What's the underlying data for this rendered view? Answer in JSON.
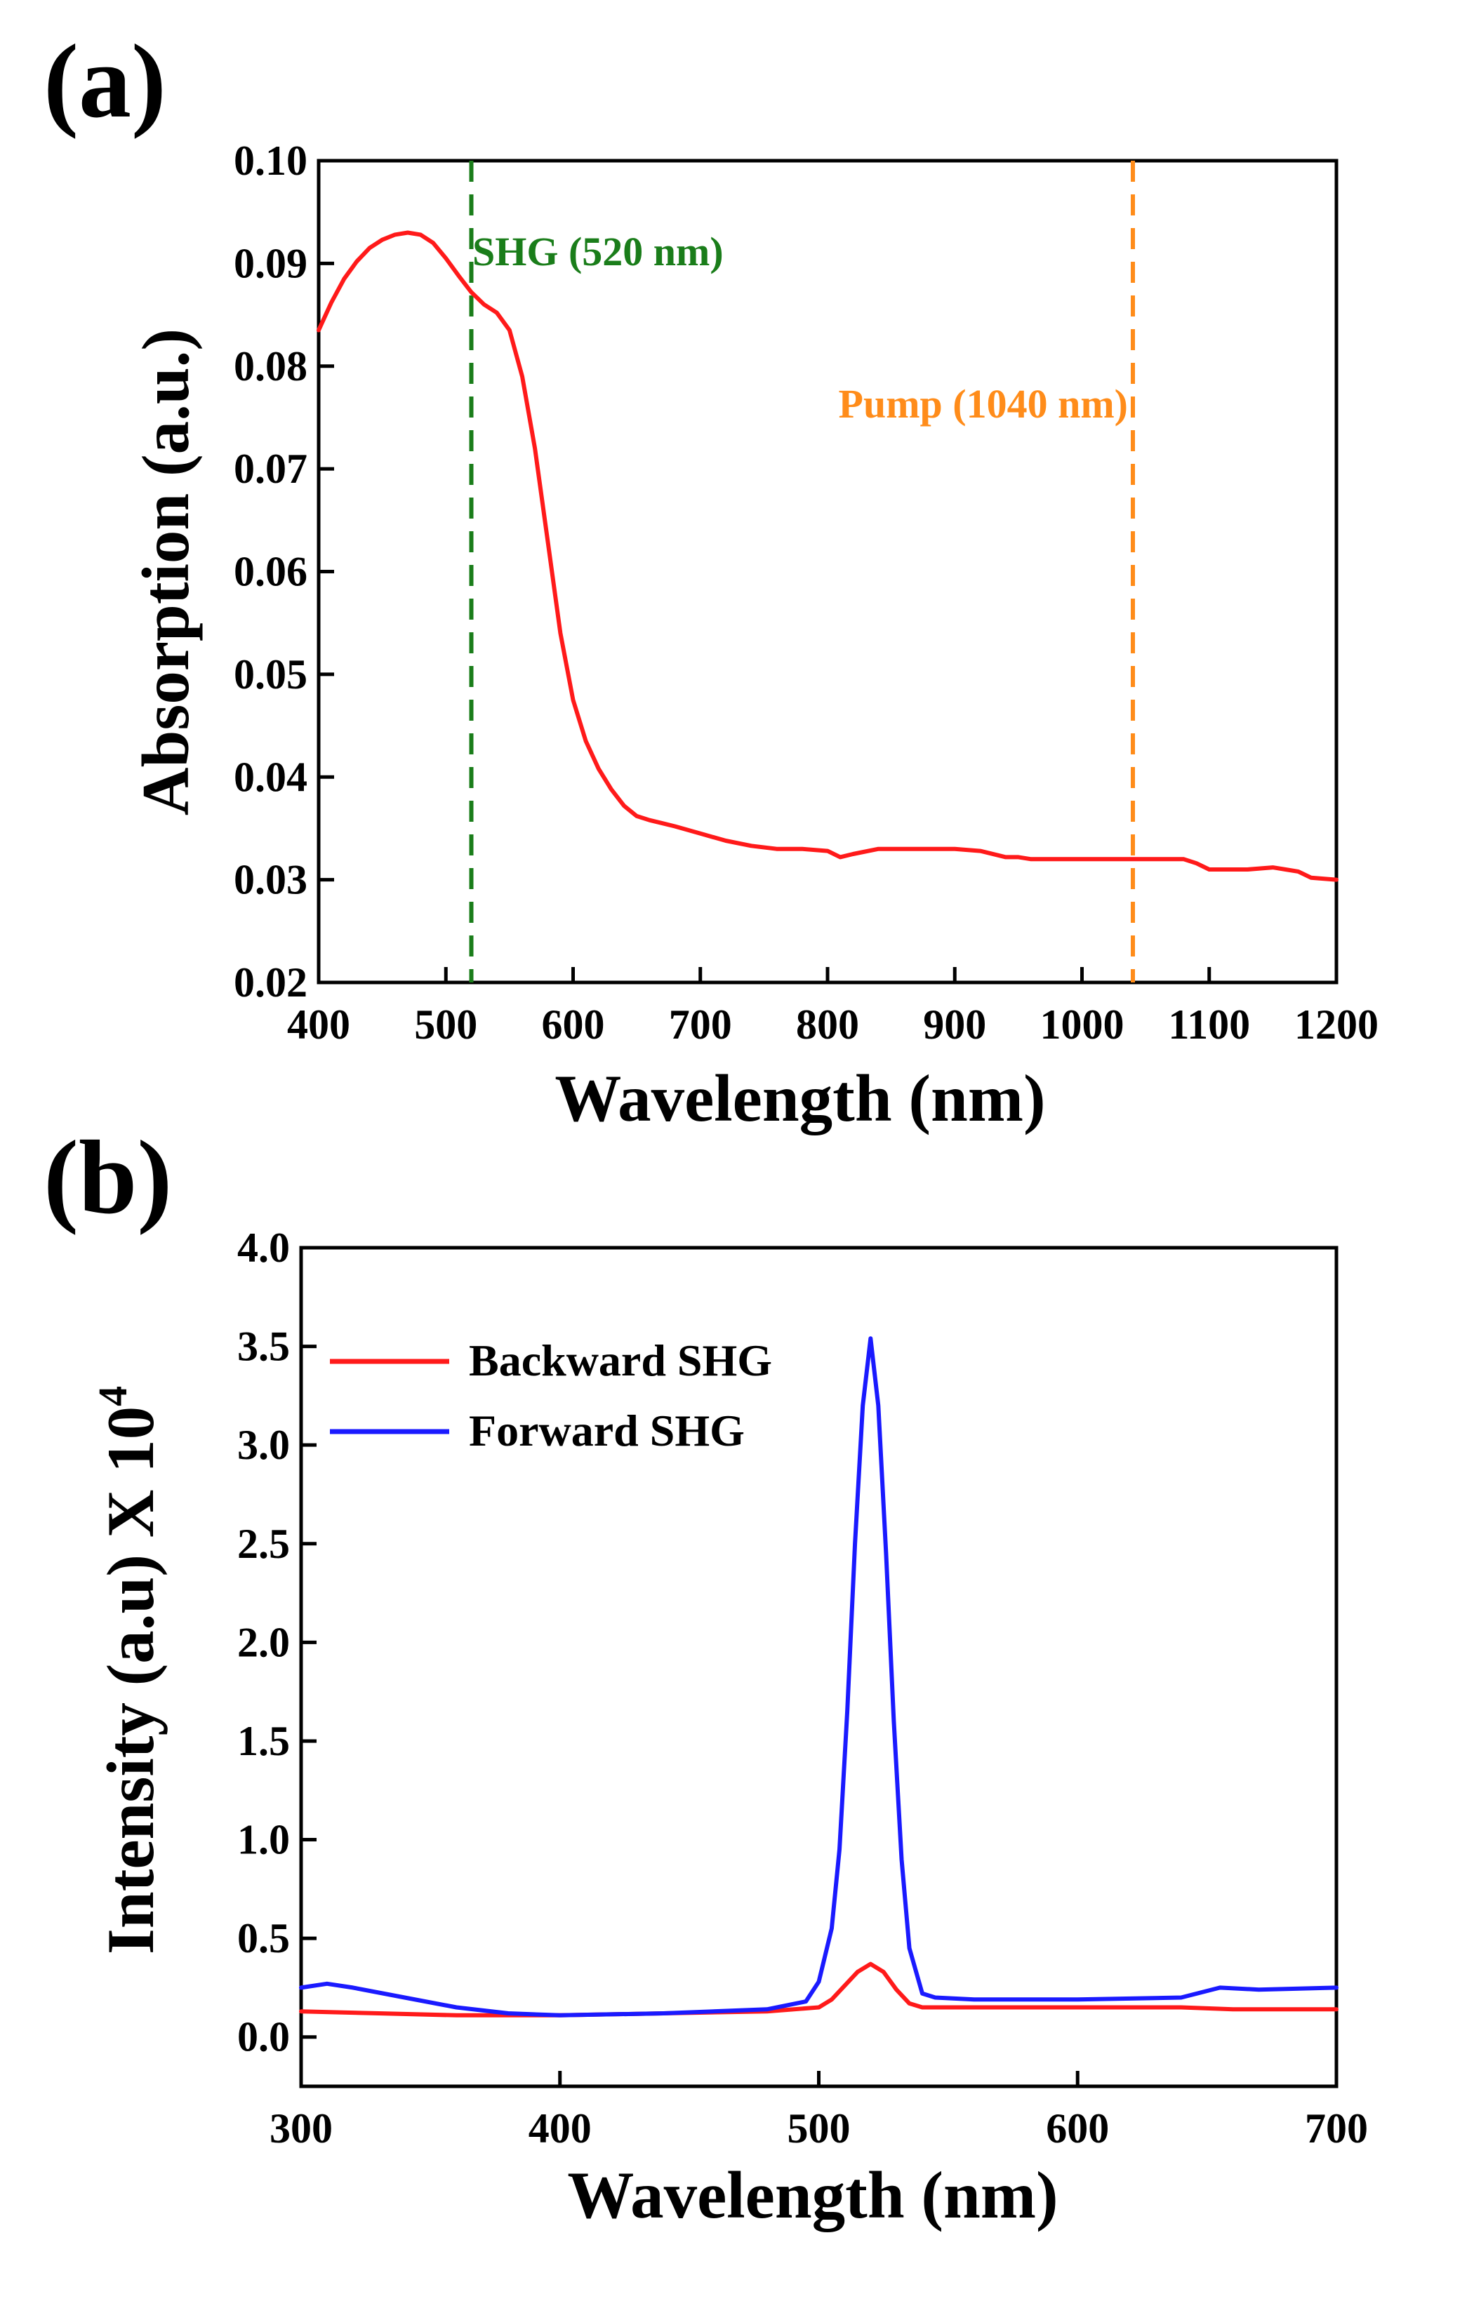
{
  "chart_data": [
    {
      "panel_label": "(a)",
      "type": "line",
      "title": "",
      "xlabel": "Wavelength (nm)",
      "ylabel": "Absorption (a.u.)",
      "xlim": [
        400,
        1200
      ],
      "ylim": [
        0.02,
        0.1
      ],
      "xticks": [
        "400",
        "500",
        "600",
        "700",
        "800",
        "900",
        "1000",
        "1100",
        "1200"
      ],
      "yticks": [
        "0.02",
        "0.03",
        "0.04",
        "0.05",
        "0.06",
        "0.07",
        "0.08",
        "0.09",
        "0.10"
      ],
      "grid": false,
      "series": [
        {
          "name": "Absorption",
          "color": "#ff1a1a",
          "x": [
            400,
            410,
            420,
            430,
            440,
            450,
            460,
            470,
            480,
            490,
            500,
            510,
            520,
            530,
            540,
            550,
            560,
            570,
            580,
            590,
            600,
            610,
            620,
            630,
            640,
            650,
            660,
            670,
            680,
            700,
            720,
            740,
            760,
            780,
            800,
            810,
            820,
            840,
            860,
            880,
            900,
            920,
            940,
            950,
            960,
            1000,
            1040,
            1060,
            1080,
            1090,
            1100,
            1110,
            1130,
            1150,
            1160,
            1170,
            1180,
            1200
          ],
          "y": [
            0.0835,
            0.0862,
            0.0885,
            0.0902,
            0.0915,
            0.0923,
            0.0928,
            0.093,
            0.0928,
            0.092,
            0.0905,
            0.0888,
            0.0872,
            0.086,
            0.0852,
            0.0835,
            0.079,
            0.072,
            0.063,
            0.054,
            0.0475,
            0.0435,
            0.0408,
            0.0388,
            0.0372,
            0.0362,
            0.0358,
            0.0355,
            0.0352,
            0.0345,
            0.0338,
            0.0333,
            0.033,
            0.033,
            0.0328,
            0.0322,
            0.0325,
            0.033,
            0.033,
            0.033,
            0.033,
            0.0328,
            0.0322,
            0.0322,
            0.032,
            0.032,
            0.032,
            0.032,
            0.032,
            0.0316,
            0.031,
            0.031,
            0.031,
            0.0312,
            0.031,
            0.0308,
            0.0302,
            0.03
          ]
        }
      ],
      "markers": [
        {
          "name": "SHG (520 nm)",
          "x": 520,
          "color": "#1a7d1a",
          "style": "dashed"
        },
        {
          "name": "Pump (1040 nm)",
          "x": 1040,
          "color": "#ff8c1a",
          "style": "dashed"
        }
      ]
    },
    {
      "panel_label": "(b)",
      "type": "line",
      "title": "",
      "xlabel": "Wavelength (nm)",
      "ylabel_main": "Intensity (a.u) X 10",
      "ylabel_sup": "4",
      "xlim": [
        300,
        700
      ],
      "ylim": [
        -0.25,
        4.0
      ],
      "xticks": [
        "300",
        "400",
        "500",
        "600",
        "700"
      ],
      "yticks": [
        "0.0",
        "0.5",
        "1.0",
        "1.5",
        "2.0",
        "2.5",
        "3.0",
        "3.5",
        "4.0"
      ],
      "grid": false,
      "legend_position": "top-left",
      "series": [
        {
          "name": "Backward SHG",
          "color": "#ff1a1a",
          "x": [
            300,
            330,
            360,
            400,
            440,
            480,
            500,
            505,
            510,
            515,
            520,
            525,
            530,
            535,
            540,
            560,
            600,
            640,
            660,
            680,
            700
          ],
          "y": [
            0.13,
            0.12,
            0.11,
            0.11,
            0.12,
            0.13,
            0.15,
            0.19,
            0.26,
            0.33,
            0.37,
            0.33,
            0.24,
            0.17,
            0.15,
            0.15,
            0.15,
            0.15,
            0.14,
            0.14,
            0.14
          ]
        },
        {
          "name": "Forward SHG",
          "color": "#1a1aff",
          "x": [
            300,
            310,
            320,
            340,
            360,
            380,
            400,
            440,
            480,
            495,
            500,
            505,
            508,
            511,
            514,
            517,
            520,
            523,
            526,
            529,
            532,
            535,
            540,
            545,
            560,
            600,
            640,
            655,
            670,
            700
          ],
          "y": [
            0.25,
            0.27,
            0.25,
            0.2,
            0.15,
            0.12,
            0.11,
            0.12,
            0.14,
            0.18,
            0.28,
            0.55,
            0.95,
            1.65,
            2.5,
            3.2,
            3.54,
            3.2,
            2.45,
            1.6,
            0.9,
            0.45,
            0.22,
            0.2,
            0.19,
            0.19,
            0.2,
            0.25,
            0.24,
            0.25
          ]
        }
      ]
    }
  ]
}
